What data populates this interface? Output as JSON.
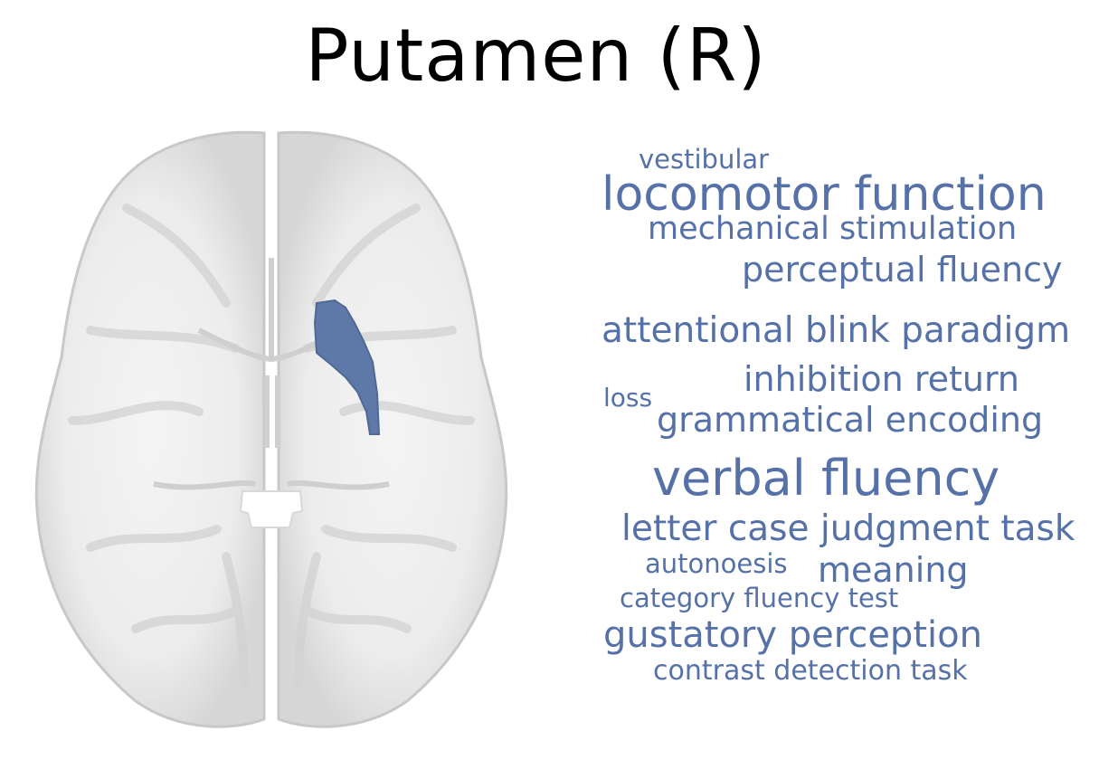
{
  "title": "Putamen (R)",
  "colors": {
    "word": "#5571a8",
    "roi": "#5e78a8",
    "brain_outer": "#d8d8d8",
    "brain_inner": "#f2f2f2"
  },
  "words": [
    "vestibular",
    "locomotor function",
    "mechanical stimulation",
    "perceptual fluency",
    "attentional blink paradigm",
    "inhibition return",
    "loss",
    "grammatical encoding",
    "verbal fluency",
    "letter case judgment task",
    "autonoesis",
    "meaning",
    "category fluency test",
    "gustatory perception",
    "contrast detection task"
  ]
}
